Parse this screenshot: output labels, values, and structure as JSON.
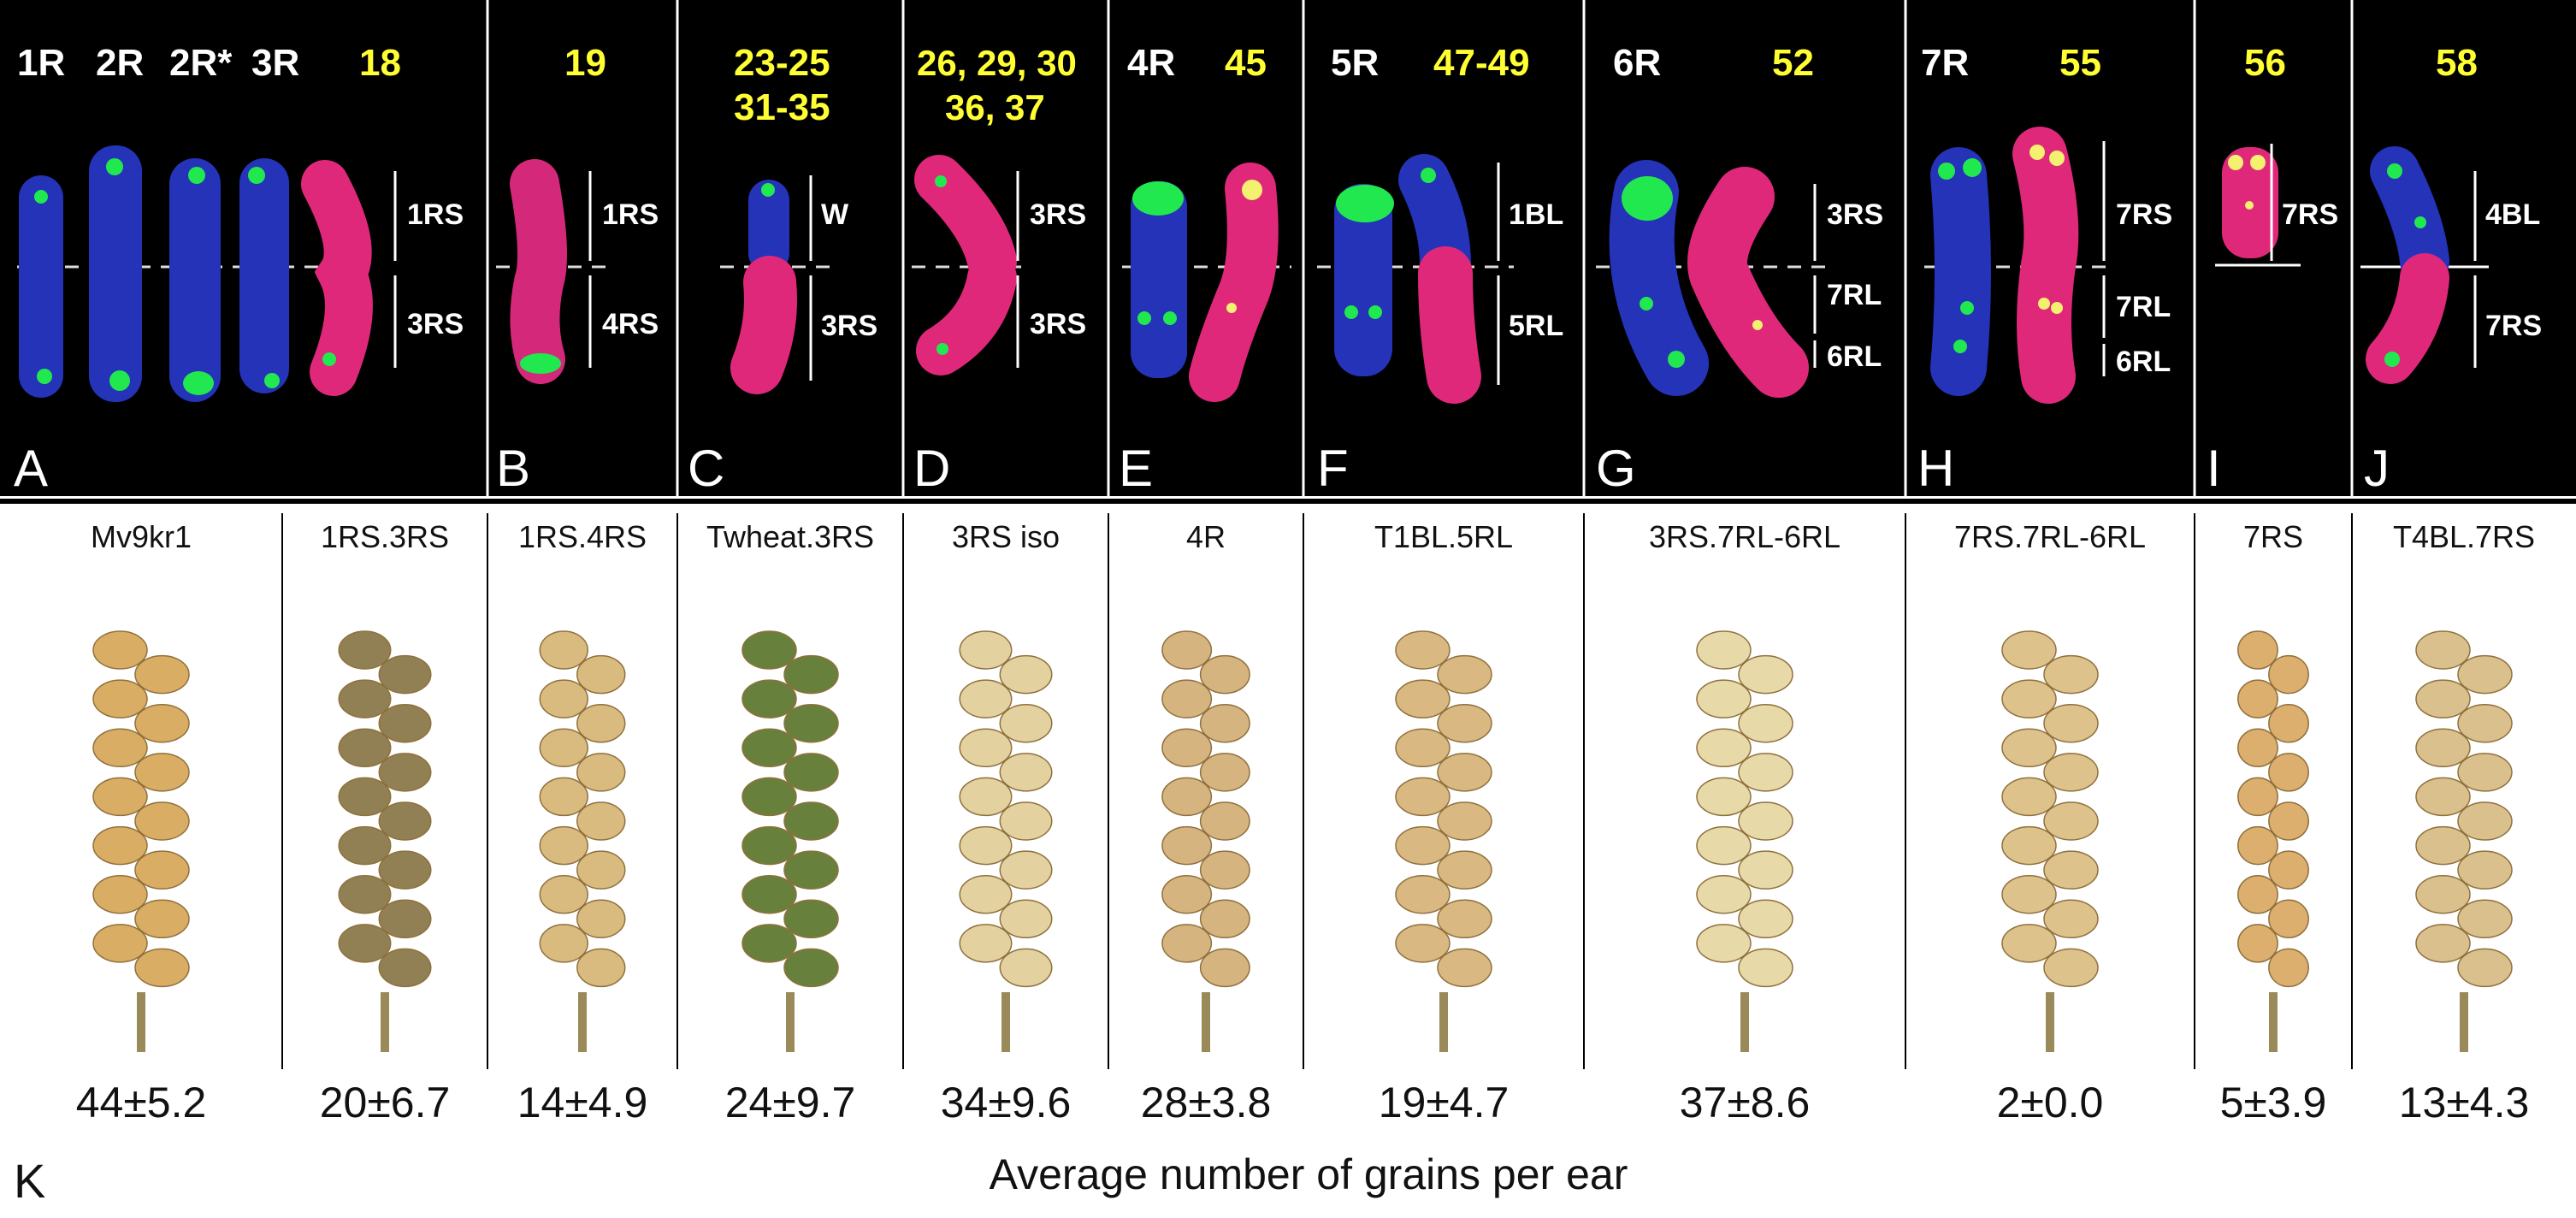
{
  "top_panels": [
    {
      "letter": "A",
      "white_labels": [
        "1R",
        "2R",
        "2R*",
        "3R"
      ],
      "yellow_lines": [
        "18"
      ],
      "arm_labels": [
        "1RS",
        "3RS"
      ]
    },
    {
      "letter": "B",
      "white_labels": [],
      "yellow_lines": [
        "19"
      ],
      "arm_labels": [
        "1RS",
        "4RS"
      ]
    },
    {
      "letter": "C",
      "white_labels": [],
      "yellow_lines": [
        "23-25",
        "31-35"
      ],
      "arm_labels": [
        "W",
        "3RS"
      ]
    },
    {
      "letter": "D",
      "white_labels": [],
      "yellow_lines": [
        "26, 29, 30",
        "36, 37"
      ],
      "arm_labels": [
        "3RS",
        "3RS"
      ]
    },
    {
      "letter": "E",
      "white_labels": [
        "4R"
      ],
      "yellow_lines": [
        "45"
      ],
      "arm_labels": []
    },
    {
      "letter": "F",
      "white_labels": [
        "5R"
      ],
      "yellow_lines": [
        "47-49"
      ],
      "arm_labels": [
        "1BL",
        "5RL"
      ]
    },
    {
      "letter": "G",
      "white_labels": [
        "6R"
      ],
      "yellow_lines": [
        "52"
      ],
      "arm_labels": [
        "3RS",
        "7RL",
        "6RL"
      ]
    },
    {
      "letter": "H",
      "white_labels": [
        "7R"
      ],
      "yellow_lines": [
        "55"
      ],
      "arm_labels": [
        "7RS",
        "7RL",
        "6RL"
      ]
    },
    {
      "letter": "I",
      "white_labels": [],
      "yellow_lines": [
        "56"
      ],
      "arm_labels": [
        "7RS"
      ]
    },
    {
      "letter": "J",
      "white_labels": [],
      "yellow_lines": [
        "58"
      ],
      "arm_labels": [
        "4BL",
        "7RS"
      ]
    }
  ],
  "bottom": {
    "letter": "K",
    "caption": "Average number of grains per ear",
    "columns": [
      {
        "name": "Mv9kr1",
        "count": "44±5.2",
        "color": "#d9a95c"
      },
      {
        "name": "1RS.3RS",
        "count": "20±6.7",
        "color": "#8c7a4a"
      },
      {
        "name": "1RS.4RS",
        "count": "14±4.9",
        "color": "#d8b87a"
      },
      {
        "name": "Twheat.3RS",
        "count": "24±9.7",
        "color": "#5f7a32"
      },
      {
        "name": "3RS iso",
        "count": "34±9.6",
        "color": "#e2cf9a"
      },
      {
        "name": "4R",
        "count": "28±3.8",
        "color": "#d4b07a"
      },
      {
        "name": "T1BL.5RL",
        "count": "19±4.7",
        "color": "#d8b57c"
      },
      {
        "name": "3RS.7RL-6RL",
        "count": "37±8.6",
        "color": "#e6d8a4"
      },
      {
        "name": "7RS.7RL-6RL",
        "count": "2±0.0",
        "color": "#ddbf86"
      },
      {
        "name": "7RS",
        "count": "5±3.9",
        "color": "#dcab68"
      },
      {
        "name": "T4BL.7RS",
        "count": "13±4.3",
        "color": "#d9bd86"
      }
    ]
  },
  "colors": {
    "background_top": "#000000",
    "chromosome_blue": "#2433b8",
    "chromosome_red": "#e0287a",
    "signal_green": "#22e850",
    "text_yellow": "#ffff33"
  }
}
